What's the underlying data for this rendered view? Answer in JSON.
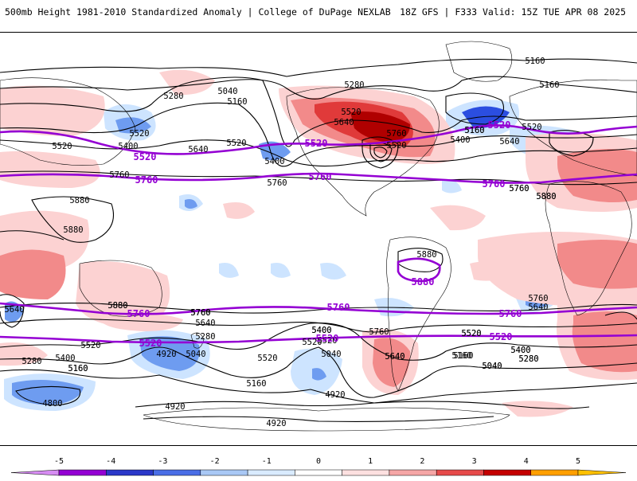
{
  "header": {
    "title": "500mb Height 1981-2010 Standardized Anomaly | College of DuPage NEXLAB",
    "run_info": "18Z GFS | F333 Valid: 15Z TUE APR 08 2025"
  },
  "map": {
    "contour_labels": [
      "5160",
      "5160",
      "5280",
      "5040",
      "5160",
      "5280",
      "5520",
      "5640",
      "5760",
      "5160",
      "5520",
      "5520",
      "5520",
      "5400",
      "5640",
      "5520",
      "5400",
      "5640",
      "5400",
      "5520",
      "5760",
      "5760",
      "5880",
      "5760",
      "5880",
      "5880",
      "5880",
      "5880",
      "5640",
      "5760",
      "5640",
      "5760",
      "5880",
      "5760",
      "5760",
      "5400",
      "5760",
      "5640",
      "5280",
      "5520",
      "5520",
      "4920",
      "5040",
      "5400",
      "5520",
      "5520",
      "5640",
      "5400",
      "5280",
      "5160",
      "5040",
      "5400",
      "5280",
      "5160",
      "5160",
      "5040",
      "4920",
      "4800",
      "4920",
      "4920",
      "5520",
      "5760",
      "5880",
      "5160",
      "5640",
      "5520",
      "5400",
      "5160",
      "5040",
      "5160",
      "5280"
    ],
    "highlight_labels": [
      "5520",
      "5520",
      "5520",
      "5760",
      "5760",
      "5760",
      "5880",
      "5760",
      "5760",
      "5760",
      "5520",
      "5520",
      "5520"
    ],
    "colors": {
      "coast": "#000000",
      "contour": "#000000",
      "highlight_contour": "#9400d3",
      "anomaly_neg1": "#cde4ff",
      "anomaly_neg2": "#6e9cf0",
      "anomaly_neg3": "#2b4ee0",
      "anomaly_pos1": "#fcd2d2",
      "anomaly_pos2": "#f28a8a",
      "anomaly_pos3": "#e03a3a",
      "anomaly_pos4": "#b00000"
    }
  },
  "colorbar": {
    "ticks": [
      "-5",
      "-4",
      "-3",
      "-2",
      "-1",
      "0",
      "1",
      "2",
      "3",
      "4",
      "5"
    ],
    "colors": [
      "#d68cf2",
      "#9400d3",
      "#2b38c8",
      "#4a6ee6",
      "#a9c8f5",
      "#d9ebff",
      "#ffffff",
      "#fde0e0",
      "#f5a6a6",
      "#e64a4a",
      "#c40000",
      "#ff9f00",
      "#ffc000"
    ]
  }
}
